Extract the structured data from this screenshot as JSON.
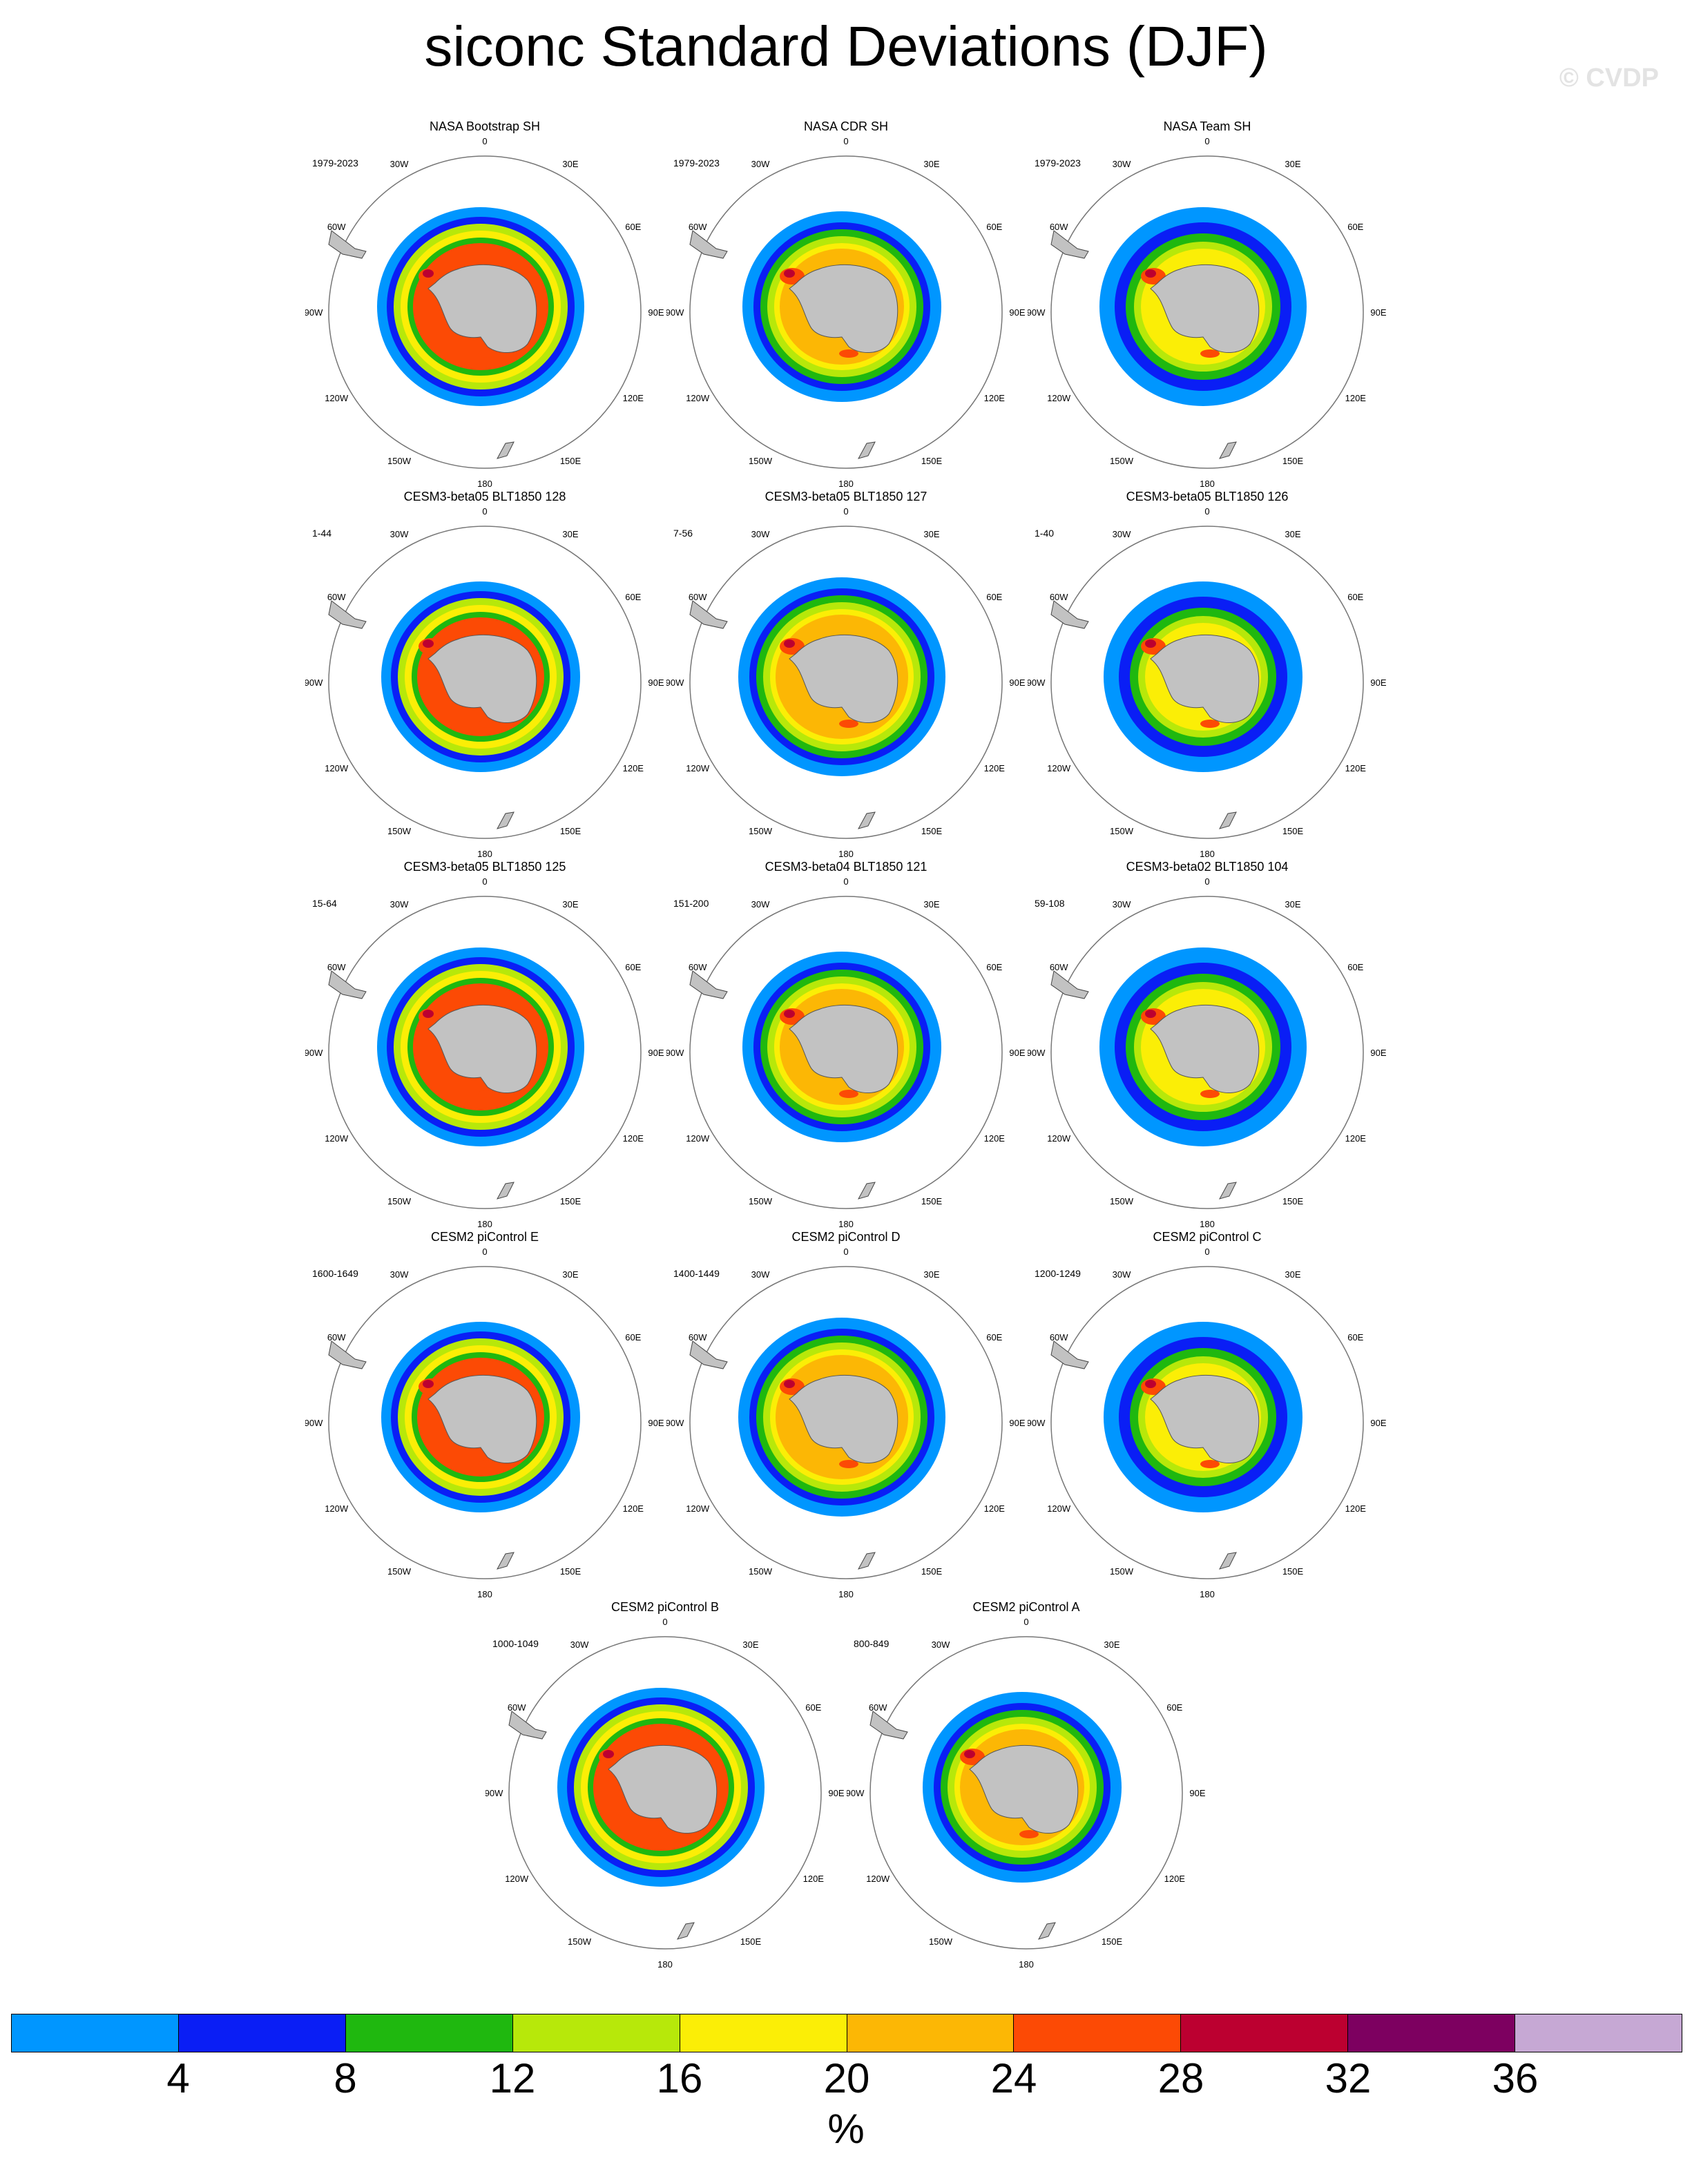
{
  "title": "siconc Standard Deviations (DJF)",
  "watermark": "© CVDP",
  "lon_labels": [
    "0",
    "30E",
    "60E",
    "90E",
    "120E",
    "150E",
    "180",
    "150W",
    "120W",
    "90W",
    "60W",
    "30W"
  ],
  "panels": [
    {
      "title": "NASA Bootstrap SH",
      "years": "1979-2023"
    },
    {
      "title": "NASA CDR SH",
      "years": "1979-2023"
    },
    {
      "title": "NASA Team SH",
      "years": "1979-2023"
    },
    {
      "title": "CESM3-beta05 BLT1850 128",
      "years": "1-44"
    },
    {
      "title": "CESM3-beta05 BLT1850 127",
      "years": "7-56"
    },
    {
      "title": "CESM3-beta05 BLT1850 126",
      "years": "1-40"
    },
    {
      "title": "CESM3-beta05 BLT1850 125",
      "years": "15-64"
    },
    {
      "title": "CESM3-beta04 BLT1850 121",
      "years": "151-200"
    },
    {
      "title": "CESM3-beta02 BLT1850 104",
      "years": "59-108"
    },
    {
      "title": "CESM2 piControl E",
      "years": "1600-1649"
    },
    {
      "title": "CESM2 piControl D",
      "years": "1400-1449"
    },
    {
      "title": "CESM2 piControl C",
      "years": "1200-1249"
    },
    {
      "title": "CESM2 piControl B",
      "years": "1000-1049"
    },
    {
      "title": "CESM2 piControl A",
      "years": "800-849"
    }
  ],
  "colorbar": {
    "unit": "%",
    "ticks": [
      "4",
      "8",
      "12",
      "16",
      "20",
      "24",
      "28",
      "32",
      "36"
    ],
    "colors": [
      "#0096ff",
      "#0a1ef5",
      "#1fb80f",
      "#b7e80a",
      "#fbee06",
      "#fcb705",
      "#fc4a05",
      "#bc0030",
      "#7d0060",
      "#c6a8d4"
    ]
  }
}
